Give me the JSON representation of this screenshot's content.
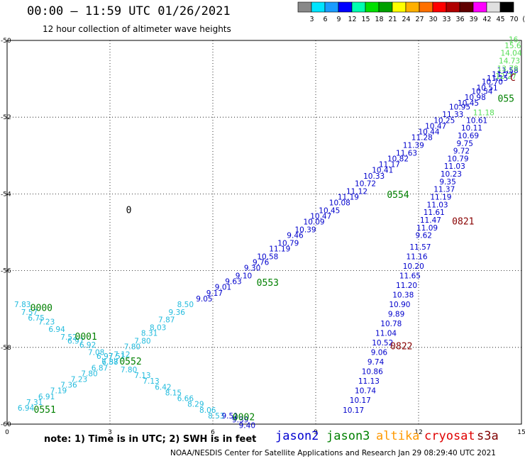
{
  "header": {
    "title": "00:00 – 11:59 UTC 01/26/2021",
    "subtitle": "12 hour collection of altimeter wave heights"
  },
  "colorbar": {
    "colors": [
      "#888888",
      "#00e5ff",
      "#1a9cff",
      "#0000ff",
      "#00ffb0",
      "#00e000",
      "#00a000",
      "#ffff00",
      "#ffb000",
      "#ff7000",
      "#ff0000",
      "#b00000",
      "#600000",
      "#ff00ff",
      "#e0e0e0",
      "#000000"
    ],
    "labels": [
      "3",
      "6",
      "9",
      "12",
      "15",
      "18",
      "21",
      "24",
      "27",
      "30",
      "33",
      "36",
      "39",
      "42",
      "45",
      "70",
      "(ft)"
    ]
  },
  "footer": {
    "note": "note: 1) Time is in UTC; 2) SWH is in feet",
    "satellites": [
      {
        "name": "jason2",
        "color": "#0000d0"
      },
      {
        "name": "jason3",
        "color": "#008000"
      },
      {
        "name": "altika",
        "color": "#ff9900"
      },
      {
        "name": "cryosat",
        "color": "#e00000"
      },
      {
        "name": "s3a",
        "color": "#800000"
      }
    ],
    "credit": "NOAA/NESDIS Center for Satellite Applications and Research    Jan 29 08:29:40 UTC 2021"
  },
  "chart_data": {
    "type": "scatter",
    "title": "00:00 – 11:59 UTC 01/26/2021",
    "subtitle": "12 hour collection of altimeter wave heights",
    "xlim": [
      0,
      15
    ],
    "ylim": [
      -60,
      -50
    ],
    "x_ticks": [
      "0",
      "3",
      "6",
      "9",
      "12",
      "15"
    ],
    "y_ticks": [
      "-50",
      "-52",
      "-54",
      "-56",
      "-58",
      "-60"
    ],
    "grid": true,
    "units": "ft",
    "point_colors": {
      "light": "#22bbdd",
      "blue": "#0000cc",
      "dgreen": "#008000",
      "lgreen": "#55dd55",
      "dred": "#880000"
    },
    "time_labels": [
      {
        "text": "0000",
        "x": 1.0,
        "y": -57.05,
        "color": "dgreen"
      },
      {
        "text": "0001",
        "x": 2.3,
        "y": -57.8,
        "color": "dgreen"
      },
      {
        "text": "0552",
        "x": 3.6,
        "y": -58.45,
        "color": "dgreen"
      },
      {
        "text": "0551",
        "x": 1.1,
        "y": -59.7,
        "color": "dgreen"
      },
      {
        "text": "0002",
        "x": 6.9,
        "y": -59.9,
        "color": "dgreen"
      },
      {
        "text": "0553",
        "x": 7.6,
        "y": -56.4,
        "color": "dgreen"
      },
      {
        "text": "0554",
        "x": 11.4,
        "y": -54.1,
        "color": "dgreen"
      },
      {
        "text": "055",
        "x": 14.55,
        "y": -51.6,
        "color": "dgreen"
      },
      {
        "text": "0821",
        "x": 13.3,
        "y": -54.8,
        "color": "dred"
      },
      {
        "text": "0822",
        "x": 11.5,
        "y": -58.05,
        "color": "dred"
      },
      {
        "text": "0",
        "x": 3.55,
        "y": -54.5,
        "color": "black"
      },
      {
        "text": "C",
        "x": 14.75,
        "y": -51.05,
        "color": "dred"
      }
    ],
    "series": [
      {
        "name": "track-a-nw",
        "color": "light",
        "points": [
          {
            "x": 0.45,
            "y": -56.95,
            "v": "7.83"
          },
          {
            "x": 0.65,
            "y": -57.15,
            "v": "7.57"
          },
          {
            "x": 0.85,
            "y": -57.3,
            "v": "6.75"
          },
          {
            "x": 1.15,
            "y": -57.4,
            "v": "7.23"
          },
          {
            "x": 1.45,
            "y": -57.6,
            "v": "6.94"
          },
          {
            "x": 1.8,
            "y": -57.8,
            "v": "7.52"
          },
          {
            "x": 2.0,
            "y": -57.9,
            "v": "6.97"
          },
          {
            "x": 2.35,
            "y": -58.0,
            "v": "6.92"
          },
          {
            "x": 2.6,
            "y": -58.2,
            "v": "7.08"
          },
          {
            "x": 2.85,
            "y": -58.3,
            "v": "6.97"
          },
          {
            "x": 3.0,
            "y": -58.45,
            "v": "7.58"
          }
        ]
      },
      {
        "name": "track-a-se",
        "color": "light",
        "points": [
          {
            "x": 3.2,
            "y": -58.3,
            "v": "7.51"
          },
          {
            "x": 3.55,
            "y": -58.65,
            "v": "7.80"
          },
          {
            "x": 3.95,
            "y": -58.8,
            "v": "7.13"
          },
          {
            "x": 4.2,
            "y": -58.95,
            "v": "7.13"
          },
          {
            "x": 4.55,
            "y": -59.1,
            "v": "6.42"
          },
          {
            "x": 4.85,
            "y": -59.25,
            "v": "8.15"
          },
          {
            "x": 5.2,
            "y": -59.4,
            "v": "6.66"
          },
          {
            "x": 5.5,
            "y": -59.55,
            "v": "8.29"
          },
          {
            "x": 5.85,
            "y": -59.7,
            "v": "8.06"
          },
          {
            "x": 6.1,
            "y": -59.85,
            "v": "8.53"
          }
        ]
      },
      {
        "name": "track-b-sw",
        "color": "light",
        "points": [
          {
            "x": 0.55,
            "y": -59.65,
            "v": "6.94"
          },
          {
            "x": 0.8,
            "y": -59.5,
            "v": "7.31"
          },
          {
            "x": 1.15,
            "y": -59.35,
            "v": "6.91"
          },
          {
            "x": 1.5,
            "y": -59.2,
            "v": "7.19"
          },
          {
            "x": 1.8,
            "y": -59.05,
            "v": "7.36"
          },
          {
            "x": 2.1,
            "y": -58.9,
            "v": "7.23"
          },
          {
            "x": 2.4,
            "y": -58.75,
            "v": "7.80"
          },
          {
            "x": 2.7,
            "y": -58.6,
            "v": "6.87"
          },
          {
            "x": 3.0,
            "y": -58.45,
            "v": "6.87"
          }
        ]
      },
      {
        "name": "track-b-ne",
        "color": "light",
        "points": [
          {
            "x": 3.35,
            "y": -58.25,
            "v": "7.12"
          },
          {
            "x": 3.65,
            "y": -58.05,
            "v": "7.80"
          },
          {
            "x": 3.95,
            "y": -57.9,
            "v": "7.80"
          },
          {
            "x": 4.15,
            "y": -57.7,
            "v": "8.31"
          },
          {
            "x": 4.4,
            "y": -57.55,
            "v": "8.03"
          },
          {
            "x": 4.65,
            "y": -57.35,
            "v": "7.87"
          },
          {
            "x": 4.95,
            "y": -57.15,
            "v": "9.36"
          },
          {
            "x": 5.2,
            "y": -56.95,
            "v": "8.50"
          }
        ]
      },
      {
        "name": "track-b-blue-upper",
        "color": "blue",
        "points": [
          {
            "x": 5.75,
            "y": -56.8,
            "v": "9.05"
          },
          {
            "x": 6.05,
            "y": -56.65,
            "v": "9.17"
          },
          {
            "x": 6.3,
            "y": -56.5,
            "v": "9.01"
          },
          {
            "x": 6.6,
            "y": -56.35,
            "v": "9.63"
          },
          {
            "x": 6.9,
            "y": -56.2,
            "v": "9.10"
          },
          {
            "x": 7.15,
            "y": -56.0,
            "v": "9.30"
          },
          {
            "x": 7.4,
            "y": -55.85,
            "v": "9.76"
          },
          {
            "x": 7.6,
            "y": -55.7,
            "v": "10.58"
          },
          {
            "x": 7.95,
            "y": -55.5,
            "v": "11.19"
          },
          {
            "x": 8.2,
            "y": -55.35,
            "v": "10.79"
          },
          {
            "x": 8.4,
            "y": -55.15,
            "v": "9.46"
          },
          {
            "x": 8.7,
            "y": -55.0,
            "v": "10.39"
          },
          {
            "x": 8.95,
            "y": -54.8,
            "v": "10.09"
          },
          {
            "x": 9.15,
            "y": -54.65,
            "v": "10.47"
          },
          {
            "x": 9.4,
            "y": -54.5,
            "v": "10.45"
          },
          {
            "x": 9.7,
            "y": -54.3,
            "v": "10.08"
          },
          {
            "x": 9.95,
            "y": -54.15,
            "v": "11.19"
          },
          {
            "x": 10.2,
            "y": -54.0,
            "v": "11.12"
          },
          {
            "x": 10.45,
            "y": -53.8,
            "v": "10.72"
          },
          {
            "x": 10.7,
            "y": -53.6,
            "v": "10.33"
          },
          {
            "x": 10.95,
            "y": -53.45,
            "v": "10.41"
          },
          {
            "x": 11.15,
            "y": -53.3,
            "v": "11.17"
          },
          {
            "x": 11.4,
            "y": -53.15,
            "v": "10.82"
          },
          {
            "x": 11.65,
            "y": -53.0,
            "v": "11.63"
          },
          {
            "x": 11.85,
            "y": -52.8,
            "v": "11.39"
          },
          {
            "x": 12.1,
            "y": -52.6,
            "v": "11.28"
          },
          {
            "x": 12.3,
            "y": -52.45,
            "v": "10.44"
          },
          {
            "x": 12.5,
            "y": -52.3,
            "v": "10.47"
          },
          {
            "x": 12.75,
            "y": -52.15,
            "v": "10.25"
          },
          {
            "x": 13.0,
            "y": -52.0,
            "v": "11.33"
          },
          {
            "x": 13.2,
            "y": -51.8,
            "v": "10.95"
          },
          {
            "x": 13.45,
            "y": -51.7,
            "v": "10.45"
          },
          {
            "x": 13.65,
            "y": -51.55,
            "v": "10.98"
          },
          {
            "x": 13.85,
            "y": -51.4,
            "v": "10.54"
          },
          {
            "x": 14.0,
            "y": -51.3,
            "v": "10.51"
          },
          {
            "x": 14.15,
            "y": -51.15,
            "v": "10.70"
          },
          {
            "x": 14.3,
            "y": -51.05,
            "v": "11.15"
          },
          {
            "x": 14.45,
            "y": -50.95,
            "v": "11.73"
          },
          {
            "x": 14.6,
            "y": -50.85,
            "v": "11.58"
          }
        ]
      },
      {
        "name": "track-c-green",
        "color": "lgreen",
        "points": [
          {
            "x": 14.8,
            "y": -50.05,
            "v": "16."
          },
          {
            "x": 14.75,
            "y": -50.2,
            "v": "15.6"
          },
          {
            "x": 14.7,
            "y": -50.4,
            "v": "14.04"
          },
          {
            "x": 14.65,
            "y": -50.6,
            "v": "14.73"
          },
          {
            "x": 14.6,
            "y": -50.8,
            "v": "13.78"
          },
          {
            "x": 14.55,
            "y": -51.0,
            "v": "12.27"
          },
          {
            "x": 13.9,
            "y": -51.95,
            "v": "11.18"
          }
        ]
      },
      {
        "name": "track-c-blue",
        "color": "blue",
        "points": [
          {
            "x": 13.7,
            "y": -52.15,
            "v": "10.61"
          },
          {
            "x": 13.55,
            "y": -52.35,
            "v": "10.11"
          },
          {
            "x": 13.45,
            "y": -52.55,
            "v": "10.69"
          },
          {
            "x": 13.35,
            "y": -52.75,
            "v": "9.75"
          },
          {
            "x": 13.25,
            "y": -52.95,
            "v": "9.72"
          },
          {
            "x": 13.15,
            "y": -53.15,
            "v": "10.79"
          },
          {
            "x": 13.05,
            "y": -53.35,
            "v": "11.03"
          },
          {
            "x": 12.95,
            "y": -53.55,
            "v": "10.23"
          },
          {
            "x": 12.85,
            "y": -53.75,
            "v": "9.35"
          },
          {
            "x": 12.75,
            "y": -53.95,
            "v": "11.37"
          },
          {
            "x": 12.65,
            "y": -54.15,
            "v": "11.19"
          },
          {
            "x": 12.55,
            "y": -54.35,
            "v": "11.03"
          },
          {
            "x": 12.45,
            "y": -54.55,
            "v": "11.61"
          },
          {
            "x": 12.35,
            "y": -54.75,
            "v": "11.47"
          },
          {
            "x": 12.25,
            "y": -54.95,
            "v": "11.09"
          },
          {
            "x": 12.15,
            "y": -55.15,
            "v": "9.62"
          },
          {
            "x": 12.05,
            "y": -55.45,
            "v": "11.57"
          },
          {
            "x": 11.95,
            "y": -55.7,
            "v": "11.16"
          },
          {
            "x": 11.85,
            "y": -55.95,
            "v": "10.20"
          },
          {
            "x": 11.75,
            "y": -56.2,
            "v": "11.65"
          },
          {
            "x": 11.65,
            "y": -56.45,
            "v": "11.20"
          },
          {
            "x": 11.55,
            "y": -56.7,
            "v": "10.38"
          },
          {
            "x": 11.45,
            "y": -56.95,
            "v": "10.90"
          },
          {
            "x": 11.35,
            "y": -57.2,
            "v": "9.89"
          },
          {
            "x": 11.2,
            "y": -57.45,
            "v": "10.78"
          },
          {
            "x": 11.05,
            "y": -57.7,
            "v": "11.04"
          },
          {
            "x": 10.95,
            "y": -57.95,
            "v": "10.52"
          },
          {
            "x": 10.85,
            "y": -58.2,
            "v": "9.06"
          },
          {
            "x": 10.75,
            "y": -58.45,
            "v": "9.74"
          },
          {
            "x": 10.65,
            "y": -58.7,
            "v": "10.86"
          },
          {
            "x": 10.55,
            "y": -58.95,
            "v": "11.13"
          },
          {
            "x": 10.45,
            "y": -59.2,
            "v": "10.74"
          },
          {
            "x": 10.3,
            "y": -59.45,
            "v": "10.17"
          },
          {
            "x": 10.1,
            "y": -59.7,
            "v": "10.17"
          }
        ]
      },
      {
        "name": "track-d-blue-lower",
        "color": "blue",
        "points": [
          {
            "x": 6.5,
            "y": -59.85,
            "v": "9.51"
          },
          {
            "x": 6.8,
            "y": -59.95,
            "v": "9.39"
          },
          {
            "x": 7.0,
            "y": -60.1,
            "v": "9.40"
          }
        ]
      }
    ]
  }
}
